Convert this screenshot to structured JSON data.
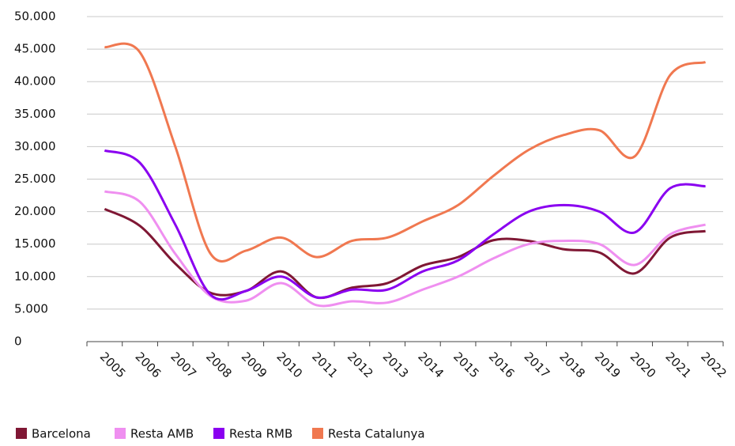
{
  "chart_data": {
    "type": "line",
    "categories": [
      "2005",
      "2006",
      "2007",
      "2008",
      "2009",
      "2010",
      "2011",
      "2012",
      "2013",
      "2014",
      "2015",
      "2016",
      "2017",
      "2018",
      "2019",
      "2020",
      "2021",
      "2022"
    ],
    "series": [
      {
        "name": "Barcelona",
        "color": "#7f1734",
        "values": [
          20400,
          17800,
          12000,
          7500,
          7800,
          10800,
          6800,
          8300,
          9000,
          11700,
          13000,
          15600,
          15500,
          14200,
          13700,
          10500,
          16000,
          17000
        ]
      },
      {
        "name": "Resta AMB",
        "color": "#ef8ff0",
        "values": [
          23100,
          21500,
          13500,
          7000,
          6300,
          9000,
          5600,
          6200,
          6000,
          8000,
          10000,
          12800,
          15000,
          15500,
          15000,
          11800,
          16500,
          18000
        ]
      },
      {
        "name": "Resta RMB",
        "color": "#8a00f0",
        "values": [
          29400,
          27500,
          18000,
          7200,
          7800,
          10000,
          6800,
          8000,
          8000,
          10800,
          12500,
          16500,
          20000,
          21000,
          20000,
          16800,
          23600,
          23900
        ]
      },
      {
        "name": "Resta Catalunya",
        "color": "#f07850",
        "values": [
          45300,
          44500,
          30000,
          13500,
          14000,
          16000,
          13000,
          15500,
          16000,
          18500,
          21000,
          25500,
          29500,
          31800,
          32500,
          28500,
          41000,
          43000
        ]
      }
    ],
    "ylim": [
      0,
      50000
    ],
    "yticks": [
      0,
      {
        "value": 5000,
        "label": "5.000"
      },
      {
        "value": 10000,
        "label": "10.000"
      },
      {
        "value": 15000,
        "label": "15.000"
      },
      {
        "value": 20000,
        "label": "20.000"
      },
      {
        "value": 25000,
        "label": "25.000"
      },
      {
        "value": 30000,
        "label": "30.000"
      },
      {
        "value": 35000,
        "label": "35.000"
      },
      {
        "value": 40000,
        "label": "40.000"
      },
      {
        "value": 45000,
        "label": "45.000"
      },
      {
        "value": 50000,
        "label": "50.000"
      }
    ],
    "grid": true,
    "legend": "bottom"
  }
}
